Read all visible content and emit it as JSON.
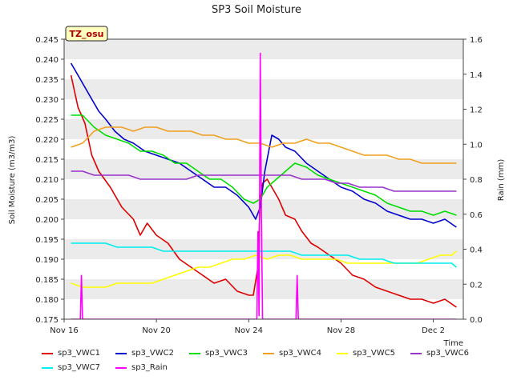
{
  "chart_data": {
    "type": "line",
    "title": "SP3 Soil Moisture",
    "badge": "TZ_osu",
    "xlabel": "Time",
    "ylabel": "Soil Moisture (m3/m3)",
    "y2label": "Rain (mm)",
    "xlim": [
      0,
      17.3
    ],
    "ylim": [
      0.175,
      0.245
    ],
    "y2lim": [
      0.0,
      1.6
    ],
    "x_ticks": [
      {
        "pos": 0,
        "label": "Nov 16"
      },
      {
        "pos": 4,
        "label": "Nov 20"
      },
      {
        "pos": 8,
        "label": "Nov 24"
      },
      {
        "pos": 12,
        "label": "Nov 28"
      },
      {
        "pos": 16,
        "label": "Dec 2"
      }
    ],
    "y_ticks": [
      "0.175",
      "0.180",
      "0.185",
      "0.190",
      "0.195",
      "0.200",
      "0.205",
      "0.210",
      "0.215",
      "0.220",
      "0.225",
      "0.230",
      "0.235",
      "0.240",
      "0.245"
    ],
    "y2_ticks": [
      "0.0",
      "0.2",
      "0.4",
      "0.6",
      "0.8",
      "1.0",
      "1.2",
      "1.4",
      "1.6"
    ],
    "grid_bands": true,
    "legend_position": "bottom",
    "series": [
      {
        "name": "sp3_VWC1",
        "color": "#dd0000",
        "axis": "left",
        "points": [
          [
            0.3,
            0.236
          ],
          [
            0.6,
            0.228
          ],
          [
            0.9,
            0.224
          ],
          [
            1.2,
            0.216
          ],
          [
            1.5,
            0.212
          ],
          [
            2.0,
            0.208
          ],
          [
            2.5,
            0.203
          ],
          [
            3.0,
            0.2
          ],
          [
            3.3,
            0.196
          ],
          [
            3.6,
            0.199
          ],
          [
            4.0,
            0.196
          ],
          [
            4.5,
            0.194
          ],
          [
            5.0,
            0.19
          ],
          [
            5.5,
            0.188
          ],
          [
            6.0,
            0.186
          ],
          [
            6.5,
            0.184
          ],
          [
            7.0,
            0.185
          ],
          [
            7.5,
            0.182
          ],
          [
            8.0,
            0.181
          ],
          [
            8.2,
            0.181
          ],
          [
            8.4,
            0.188
          ],
          [
            8.5,
            0.205
          ],
          [
            8.6,
            0.209
          ],
          [
            8.8,
            0.21
          ],
          [
            9.0,
            0.208
          ],
          [
            9.3,
            0.205
          ],
          [
            9.6,
            0.201
          ],
          [
            10.0,
            0.2
          ],
          [
            10.3,
            0.197
          ],
          [
            10.7,
            0.194
          ],
          [
            11.0,
            0.193
          ],
          [
            11.5,
            0.191
          ],
          [
            12.0,
            0.189
          ],
          [
            12.5,
            0.186
          ],
          [
            13.0,
            0.185
          ],
          [
            13.5,
            0.183
          ],
          [
            14.0,
            0.182
          ],
          [
            14.5,
            0.181
          ],
          [
            15.0,
            0.18
          ],
          [
            15.5,
            0.18
          ],
          [
            16.0,
            0.179
          ],
          [
            16.5,
            0.18
          ],
          [
            17.0,
            0.178
          ]
        ]
      },
      {
        "name": "sp3_VWC2",
        "color": "#0000cc",
        "axis": "left",
        "points": [
          [
            0.3,
            0.239
          ],
          [
            0.6,
            0.236
          ],
          [
            0.9,
            0.233
          ],
          [
            1.2,
            0.23
          ],
          [
            1.5,
            0.227
          ],
          [
            1.8,
            0.225
          ],
          [
            2.2,
            0.222
          ],
          [
            2.6,
            0.22
          ],
          [
            3.0,
            0.219
          ],
          [
            3.5,
            0.217
          ],
          [
            4.0,
            0.216
          ],
          [
            4.5,
            0.215
          ],
          [
            5.0,
            0.214
          ],
          [
            5.5,
            0.212
          ],
          [
            6.0,
            0.21
          ],
          [
            6.5,
            0.208
          ],
          [
            7.0,
            0.208
          ],
          [
            7.5,
            0.206
          ],
          [
            8.0,
            0.203
          ],
          [
            8.3,
            0.2
          ],
          [
            8.5,
            0.203
          ],
          [
            8.7,
            0.212
          ],
          [
            9.0,
            0.221
          ],
          [
            9.3,
            0.22
          ],
          [
            9.6,
            0.218
          ],
          [
            10.0,
            0.217
          ],
          [
            10.5,
            0.214
          ],
          [
            11.0,
            0.212
          ],
          [
            11.5,
            0.21
          ],
          [
            12.0,
            0.208
          ],
          [
            12.5,
            0.207
          ],
          [
            13.0,
            0.205
          ],
          [
            13.5,
            0.204
          ],
          [
            14.0,
            0.202
          ],
          [
            14.5,
            0.201
          ],
          [
            15.0,
            0.2
          ],
          [
            15.5,
            0.2
          ],
          [
            16.0,
            0.199
          ],
          [
            16.5,
            0.2
          ],
          [
            17.0,
            0.198
          ]
        ]
      },
      {
        "name": "sp3_VWC3",
        "color": "#00dd00",
        "axis": "left",
        "points": [
          [
            0.3,
            0.226
          ],
          [
            0.8,
            0.226
          ],
          [
            1.3,
            0.223
          ],
          [
            1.8,
            0.221
          ],
          [
            2.3,
            0.22
          ],
          [
            2.8,
            0.219
          ],
          [
            3.3,
            0.217
          ],
          [
            3.8,
            0.217
          ],
          [
            4.3,
            0.216
          ],
          [
            4.8,
            0.214
          ],
          [
            5.3,
            0.214
          ],
          [
            5.8,
            0.212
          ],
          [
            6.3,
            0.21
          ],
          [
            6.8,
            0.21
          ],
          [
            7.3,
            0.208
          ],
          [
            7.8,
            0.205
          ],
          [
            8.2,
            0.204
          ],
          [
            8.5,
            0.205
          ],
          [
            8.8,
            0.208
          ],
          [
            9.2,
            0.21
          ],
          [
            9.6,
            0.212
          ],
          [
            10.0,
            0.214
          ],
          [
            10.5,
            0.213
          ],
          [
            11.0,
            0.211
          ],
          [
            11.5,
            0.21
          ],
          [
            12.0,
            0.209
          ],
          [
            12.5,
            0.208
          ],
          [
            13.0,
            0.207
          ],
          [
            13.5,
            0.206
          ],
          [
            14.0,
            0.204
          ],
          [
            14.5,
            0.203
          ],
          [
            15.0,
            0.202
          ],
          [
            15.5,
            0.202
          ],
          [
            16.0,
            0.201
          ],
          [
            16.5,
            0.202
          ],
          [
            17.0,
            0.201
          ]
        ]
      },
      {
        "name": "sp3_VWC4",
        "color": "#f0a020",
        "axis": "left",
        "points": [
          [
            0.3,
            0.218
          ],
          [
            0.8,
            0.219
          ],
          [
            1.3,
            0.222
          ],
          [
            1.8,
            0.223
          ],
          [
            2.5,
            0.223
          ],
          [
            3.0,
            0.222
          ],
          [
            3.5,
            0.223
          ],
          [
            4.0,
            0.223
          ],
          [
            4.5,
            0.222
          ],
          [
            5.0,
            0.222
          ],
          [
            5.5,
            0.222
          ],
          [
            6.0,
            0.221
          ],
          [
            6.5,
            0.221
          ],
          [
            7.0,
            0.22
          ],
          [
            7.5,
            0.22
          ],
          [
            8.0,
            0.219
          ],
          [
            8.5,
            0.219
          ],
          [
            9.0,
            0.218
          ],
          [
            9.5,
            0.219
          ],
          [
            10.0,
            0.219
          ],
          [
            10.5,
            0.22
          ],
          [
            11.0,
            0.219
          ],
          [
            11.5,
            0.219
          ],
          [
            12.0,
            0.218
          ],
          [
            12.5,
            0.217
          ],
          [
            13.0,
            0.216
          ],
          [
            13.5,
            0.216
          ],
          [
            14.0,
            0.216
          ],
          [
            14.5,
            0.215
          ],
          [
            15.0,
            0.215
          ],
          [
            15.5,
            0.214
          ],
          [
            16.0,
            0.214
          ],
          [
            16.5,
            0.214
          ],
          [
            17.0,
            0.214
          ]
        ]
      },
      {
        "name": "sp3_VWC5",
        "color": "#ffff00",
        "axis": "left",
        "points": [
          [
            0.3,
            0.184
          ],
          [
            0.8,
            0.183
          ],
          [
            1.3,
            0.183
          ],
          [
            1.8,
            0.183
          ],
          [
            2.3,
            0.184
          ],
          [
            2.8,
            0.184
          ],
          [
            3.3,
            0.184
          ],
          [
            3.8,
            0.184
          ],
          [
            4.3,
            0.185
          ],
          [
            4.8,
            0.186
          ],
          [
            5.3,
            0.187
          ],
          [
            5.8,
            0.188
          ],
          [
            6.3,
            0.188
          ],
          [
            6.8,
            0.189
          ],
          [
            7.3,
            0.19
          ],
          [
            7.8,
            0.19
          ],
          [
            8.3,
            0.191
          ],
          [
            8.8,
            0.19
          ],
          [
            9.3,
            0.191
          ],
          [
            9.8,
            0.191
          ],
          [
            10.3,
            0.19
          ],
          [
            10.8,
            0.19
          ],
          [
            11.3,
            0.19
          ],
          [
            11.8,
            0.19
          ],
          [
            12.3,
            0.189
          ],
          [
            12.8,
            0.189
          ],
          [
            13.3,
            0.189
          ],
          [
            13.8,
            0.189
          ],
          [
            14.3,
            0.189
          ],
          [
            14.8,
            0.189
          ],
          [
            15.3,
            0.189
          ],
          [
            15.8,
            0.19
          ],
          [
            16.3,
            0.191
          ],
          [
            16.8,
            0.191
          ],
          [
            17.0,
            0.192
          ]
        ]
      },
      {
        "name": "sp3_VWC6",
        "color": "#9933cc",
        "axis": "left",
        "points": [
          [
            0.3,
            0.212
          ],
          [
            0.8,
            0.212
          ],
          [
            1.3,
            0.211
          ],
          [
            1.8,
            0.211
          ],
          [
            2.3,
            0.211
          ],
          [
            2.8,
            0.211
          ],
          [
            3.3,
            0.21
          ],
          [
            3.8,
            0.21
          ],
          [
            4.3,
            0.21
          ],
          [
            4.8,
            0.21
          ],
          [
            5.3,
            0.21
          ],
          [
            5.8,
            0.211
          ],
          [
            6.3,
            0.211
          ],
          [
            6.8,
            0.211
          ],
          [
            7.3,
            0.211
          ],
          [
            7.8,
            0.211
          ],
          [
            8.3,
            0.211
          ],
          [
            8.8,
            0.211
          ],
          [
            9.3,
            0.211
          ],
          [
            9.8,
            0.211
          ],
          [
            10.3,
            0.21
          ],
          [
            10.8,
            0.21
          ],
          [
            11.3,
            0.21
          ],
          [
            11.8,
            0.209
          ],
          [
            12.3,
            0.209
          ],
          [
            12.8,
            0.208
          ],
          [
            13.3,
            0.208
          ],
          [
            13.8,
            0.208
          ],
          [
            14.3,
            0.207
          ],
          [
            14.8,
            0.207
          ],
          [
            15.3,
            0.207
          ],
          [
            15.8,
            0.207
          ],
          [
            16.3,
            0.207
          ],
          [
            16.8,
            0.207
          ],
          [
            17.0,
            0.207
          ]
        ]
      },
      {
        "name": "sp3_VWC7",
        "color": "#00eeee",
        "axis": "left",
        "points": [
          [
            0.3,
            0.194
          ],
          [
            0.8,
            0.194
          ],
          [
            1.3,
            0.194
          ],
          [
            1.8,
            0.194
          ],
          [
            2.3,
            0.193
          ],
          [
            2.8,
            0.193
          ],
          [
            3.3,
            0.193
          ],
          [
            3.8,
            0.193
          ],
          [
            4.3,
            0.192
          ],
          [
            4.8,
            0.192
          ],
          [
            5.3,
            0.192
          ],
          [
            5.8,
            0.192
          ],
          [
            6.3,
            0.192
          ],
          [
            6.8,
            0.192
          ],
          [
            7.3,
            0.192
          ],
          [
            7.8,
            0.192
          ],
          [
            8.3,
            0.192
          ],
          [
            8.8,
            0.192
          ],
          [
            9.3,
            0.192
          ],
          [
            9.8,
            0.192
          ],
          [
            10.3,
            0.191
          ],
          [
            10.8,
            0.191
          ],
          [
            11.3,
            0.191
          ],
          [
            11.8,
            0.191
          ],
          [
            12.3,
            0.191
          ],
          [
            12.8,
            0.19
          ],
          [
            13.3,
            0.19
          ],
          [
            13.8,
            0.19
          ],
          [
            14.3,
            0.189
          ],
          [
            14.8,
            0.189
          ],
          [
            15.3,
            0.189
          ],
          [
            15.8,
            0.189
          ],
          [
            16.3,
            0.189
          ],
          [
            16.8,
            0.189
          ],
          [
            17.0,
            0.188
          ]
        ]
      },
      {
        "name": "sp3_Rain",
        "color": "#ff00ff",
        "axis": "right",
        "points": [
          [
            0.3,
            0.0
          ],
          [
            0.7,
            0.0
          ],
          [
            0.75,
            0.25
          ],
          [
            0.8,
            0.0
          ],
          [
            8.35,
            0.0
          ],
          [
            8.4,
            0.5
          ],
          [
            8.45,
            0.02
          ],
          [
            8.5,
            1.52
          ],
          [
            8.55,
            0.6
          ],
          [
            8.6,
            0.0
          ],
          [
            10.05,
            0.0
          ],
          [
            10.1,
            0.25
          ],
          [
            10.15,
            0.0
          ],
          [
            17.0,
            0.0
          ]
        ]
      }
    ]
  }
}
